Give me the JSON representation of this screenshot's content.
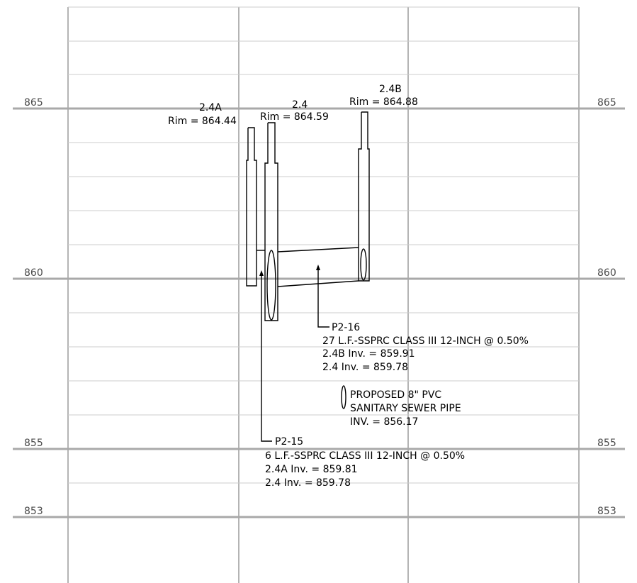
{
  "elevation_labels": {
    "e865": "865",
    "e860": "860",
    "e855": "855",
    "e853": "853"
  },
  "structures": {
    "s24a": {
      "name": "2.4A",
      "rim": "Rim = 864.44"
    },
    "s24": {
      "name": "2.4",
      "rim": "Rim = 864.59"
    },
    "s24b": {
      "name": "2.4B",
      "rim": "Rim = 864.88"
    }
  },
  "pipes": {
    "p216": {
      "id": "P2-16",
      "desc": "27 L.F.-SSPRC CLASS III 12-INCH @ 0.50%",
      "inv1": "2.4B Inv. = 859.91",
      "inv2": "2.4 Inv. = 859.78"
    },
    "p215": {
      "id": "P2-15",
      "desc": "6 L.F.-SSPRC CLASS III 12-INCH @ 0.50%",
      "inv1": "2.4A Inv. = 859.81",
      "inv2": "2.4 Inv. = 859.78"
    }
  },
  "crossing": {
    "line1": "PROPOSED 8\" PVC",
    "line2": "SANITARY SEWER PIPE",
    "line3": "INV. = 856.17"
  },
  "colors": {
    "linework": "#000000",
    "grid": "#b4b4b4",
    "elevation_text": "#4a4a4a"
  }
}
